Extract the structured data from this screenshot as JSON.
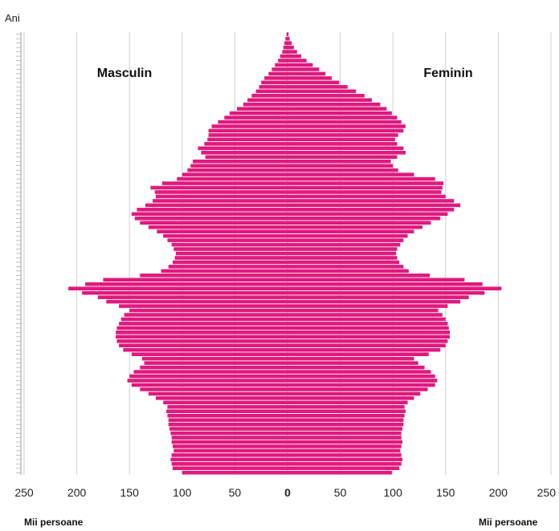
{
  "chart_data": {
    "type": "bar",
    "orientation": "horizontal",
    "subtype": "population-pyramid",
    "title": "",
    "y_axis_label": "Ani",
    "x_axis_unit_left": "Mii persoane",
    "x_axis_unit_right": "Mii persoane",
    "xlim": [
      -250,
      250
    ],
    "x_ticks": [
      {
        "value": -250,
        "label": "250"
      },
      {
        "value": -200,
        "label": "200"
      },
      {
        "value": -150,
        "label": "150"
      },
      {
        "value": -100,
        "label": "100"
      },
      {
        "value": -50,
        "label": "50"
      },
      {
        "value": 0,
        "label": "0"
      },
      {
        "value": 50,
        "label": "50"
      },
      {
        "value": 100,
        "label": "100"
      },
      {
        "value": 150,
        "label": "150"
      },
      {
        "value": 200,
        "label": "200"
      },
      {
        "value": 250,
        "label": "250"
      }
    ],
    "age_min": 0,
    "age_max": 100,
    "grid": "vertical",
    "bar_color": "#e0197d",
    "series": [
      {
        "name": "Masculin",
        "side": "left",
        "values": [
          100,
          109,
          110,
          111,
          110,
          108,
          109,
          110,
          110,
          111,
          112,
          113,
          113,
          114,
          115,
          114,
          118,
          125,
          132,
          140,
          148,
          152,
          150,
          146,
          140,
          136,
          138,
          148,
          156,
          160,
          162,
          163,
          163,
          162,
          160,
          158,
          155,
          150,
          160,
          172,
          180,
          195,
          208,
          192,
          175,
          140,
          120,
          113,
          109,
          107,
          106,
          108,
          110,
          114,
          118,
          124,
          132,
          140,
          145,
          148,
          143,
          135,
          128,
          125,
          126,
          130,
          119,
          105,
          100,
          95,
          92,
          90,
          78,
          82,
          85,
          79,
          76,
          75,
          75,
          72,
          66,
          60,
          55,
          48,
          42,
          38,
          34,
          30,
          27,
          25,
          22,
          18,
          15,
          12,
          9,
          7,
          5,
          4,
          3,
          2,
          1
        ]
      },
      {
        "name": "Feminin",
        "side": "right",
        "values": [
          99,
          106,
          108,
          109,
          108,
          107,
          108,
          109,
          108,
          108,
          109,
          110,
          110,
          111,
          112,
          111,
          114,
          120,
          126,
          133,
          140,
          142,
          140,
          136,
          130,
          124,
          120,
          134,
          145,
          150,
          152,
          154,
          154,
          153,
          152,
          150,
          147,
          143,
          152,
          164,
          172,
          187,
          203,
          185,
          168,
          135,
          115,
          110,
          106,
          104,
          103,
          104,
          107,
          110,
          114,
          120,
          128,
          136,
          145,
          152,
          158,
          164,
          158,
          150,
          146,
          147,
          148,
          140,
          120,
          105,
          100,
          98,
          104,
          112,
          110,
          104,
          102,
          105,
          110,
          112,
          108,
          104,
          99,
          94,
          88,
          80,
          73,
          65,
          57,
          49,
          42,
          36,
          30,
          24,
          18,
          13,
          9,
          6,
          4,
          2,
          1
        ]
      }
    ]
  }
}
